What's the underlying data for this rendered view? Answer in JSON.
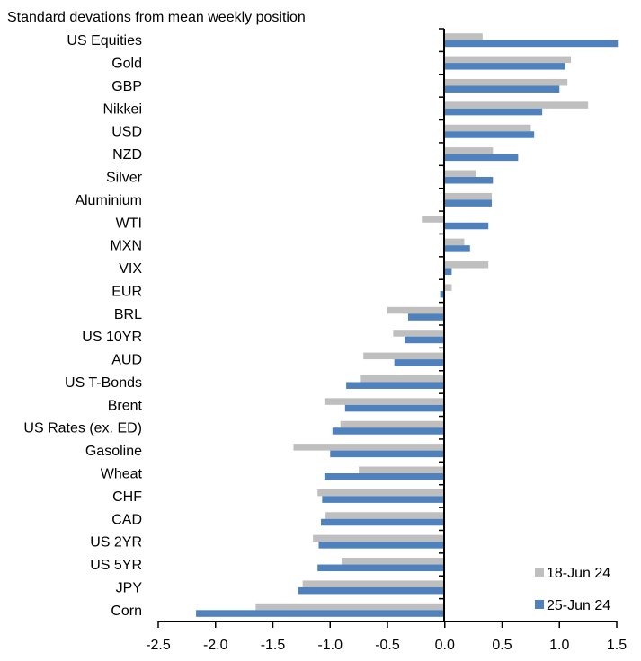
{
  "chart_data": {
    "type": "bar",
    "orientation": "horizontal",
    "title": "Standard devations from mean weekly position",
    "xlabel": "",
    "ylabel": "",
    "xlim": [
      -2.5,
      1.5
    ],
    "xticks": [
      "-2.5",
      "-2.0",
      "-1.5",
      "-1.0",
      "-0.5",
      "0.0",
      "0.5",
      "1.0",
      "1.5"
    ],
    "grid": false,
    "legend_position": "bottom-right",
    "categories": [
      "US Equities",
      "Gold",
      "GBP",
      "Nikkei",
      "USD",
      "NZD",
      "Silver",
      "Aluminium",
      "WTI",
      "MXN",
      "VIX",
      "EUR",
      "BRL",
      "US 10YR",
      "AUD",
      "US T-Bonds",
      "Brent",
      "US Rates (ex. ED)",
      "Gasoline",
      "Wheat",
      "CHF",
      "CAD",
      "US 2YR",
      "US 5YR",
      "JPY",
      "Corn"
    ],
    "series": [
      {
        "name": "18-Jun 24",
        "color": "#BFBFBF",
        "values": [
          0.33,
          1.1,
          1.07,
          1.25,
          0.75,
          0.42,
          0.27,
          0.41,
          -0.2,
          0.17,
          0.38,
          0.06,
          -0.5,
          -0.45,
          -0.71,
          -0.74,
          -1.05,
          -0.91,
          -1.32,
          -0.75,
          -1.11,
          -1.04,
          -1.15,
          -0.9,
          -1.24,
          -1.65
        ]
      },
      {
        "name": "25-Jun 24",
        "color": "#4F81BD",
        "values": [
          1.51,
          1.05,
          1.0,
          0.85,
          0.78,
          0.64,
          0.42,
          0.41,
          0.38,
          0.22,
          0.06,
          -0.04,
          -0.32,
          -0.35,
          -0.44,
          -0.86,
          -0.87,
          -0.98,
          -1.0,
          -1.05,
          -1.07,
          -1.08,
          -1.1,
          -1.11,
          -1.28,
          -2.17
        ]
      }
    ]
  }
}
